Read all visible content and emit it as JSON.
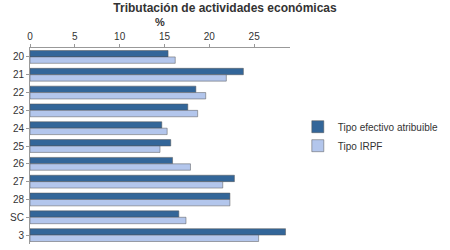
{
  "chart_data": {
    "type": "bar",
    "orientation": "horizontal",
    "title": "Tributación de actividades económicas",
    "x_label": "%",
    "categories": [
      "20",
      "21",
      "22",
      "23",
      "24",
      "25",
      "26",
      "27",
      "28",
      "SC",
      "3"
    ],
    "series": [
      {
        "name": "Tipo efectivo atribuible",
        "color": "#336699",
        "values": [
          15.4,
          23.8,
          18.5,
          17.6,
          14.7,
          15.7,
          15.9,
          22.8,
          22.3,
          16.6,
          28.5
        ]
      },
      {
        "name": "Tipo IRPF",
        "color": "#b3c6ec",
        "values": [
          16.2,
          21.9,
          19.6,
          18.7,
          15.3,
          14.5,
          17.9,
          21.5,
          22.3,
          17.4,
          25.5
        ]
      }
    ],
    "xlim": [
      0,
      29
    ],
    "xticks": [
      0,
      5,
      10,
      15,
      20,
      25
    ],
    "grid": false,
    "legend": "right"
  }
}
